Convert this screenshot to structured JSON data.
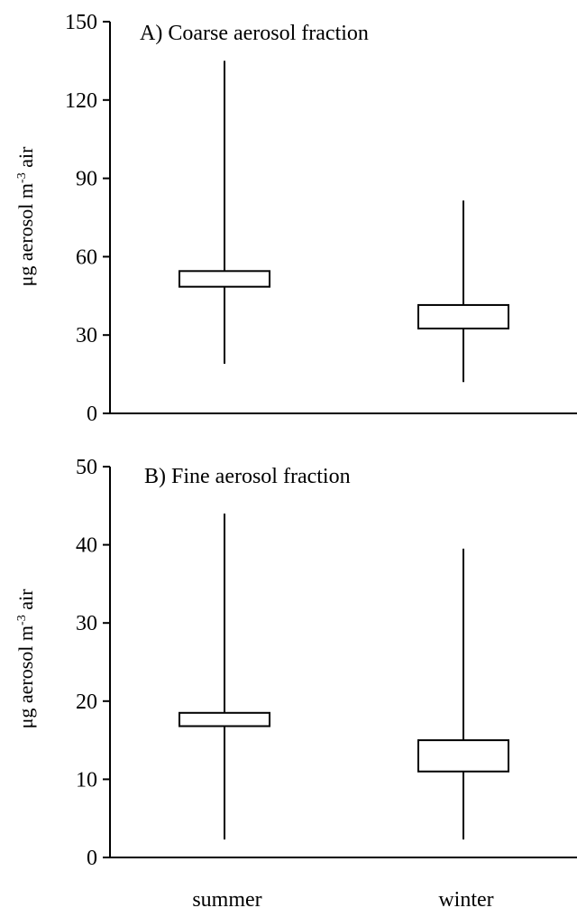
{
  "chart_data": [
    {
      "type": "box",
      "title": "A) Coarse aerosol fraction",
      "y_label": [
        "μg aerosol m",
        "-3",
        " air"
      ],
      "ylim": [
        0,
        150
      ],
      "yticks": [
        0,
        30,
        60,
        90,
        120,
        150
      ],
      "boxes": [
        {
          "min": 19,
          "q1": 48.5,
          "q3": 54.5,
          "max": 135
        },
        {
          "min": 12,
          "q1": 32.5,
          "q3": 41.5,
          "max": 81.5
        }
      ]
    },
    {
      "type": "box",
      "title": "B) Fine aerosol fraction",
      "y_label": [
        "μg aerosol m",
        "-3",
        " air"
      ],
      "ylim": [
        0,
        50
      ],
      "yticks": [
        0,
        10,
        20,
        30,
        40,
        50
      ],
      "categories": [
        "summer",
        "winter"
      ],
      "boxes": [
        {
          "min": 2.3,
          "q1": 16.8,
          "q3": 18.5,
          "max": 44
        },
        {
          "min": 2.3,
          "q1": 11,
          "q3": 15,
          "max": 39.5
        }
      ]
    }
  ]
}
